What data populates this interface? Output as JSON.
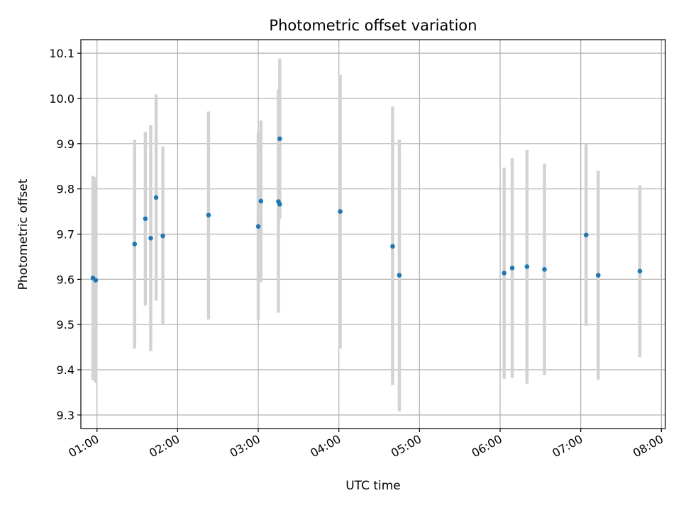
{
  "chart_data": {
    "type": "scatter",
    "title": "Photometric offset variation",
    "xlabel": "UTC time",
    "ylabel": "Photometric offset",
    "grid": true,
    "x_unit": "UTC time (HH:MM)",
    "xlim": [
      "00:48",
      "08:03"
    ],
    "ylim": [
      9.27,
      10.13
    ],
    "xticks": [
      "01:00",
      "02:00",
      "03:00",
      "04:00",
      "05:00",
      "06:00",
      "07:00",
      "08:00"
    ],
    "yticks": [
      "9.3",
      "9.4",
      "9.5",
      "9.6",
      "9.7",
      "9.8",
      "9.9",
      "10.0",
      "10.1"
    ],
    "marker_color": "#1f77b4",
    "errorbar_color": "#d3d3d3",
    "points": [
      {
        "x": "00:57",
        "y": 9.603,
        "ylow": 9.377,
        "yhigh": 9.829
      },
      {
        "x": "00:59",
        "y": 9.598,
        "ylow": 9.371,
        "yhigh": 9.826
      },
      {
        "x": "01:28",
        "y": 9.678,
        "ylow": 9.447,
        "yhigh": 9.909
      },
      {
        "x": "01:36",
        "y": 9.734,
        "ylow": 9.542,
        "yhigh": 9.926
      },
      {
        "x": "01:40",
        "y": 9.691,
        "ylow": 9.441,
        "yhigh": 9.941
      },
      {
        "x": "01:44",
        "y": 9.781,
        "ylow": 9.553,
        "yhigh": 10.009
      },
      {
        "x": "01:49",
        "y": 9.696,
        "ylow": 9.499,
        "yhigh": 9.894
      },
      {
        "x": "02:23",
        "y": 9.742,
        "ylow": 9.511,
        "yhigh": 9.971
      },
      {
        "x": "03:00",
        "y": 9.717,
        "ylow": 9.51,
        "yhigh": 9.924
      },
      {
        "x": "03:02",
        "y": 9.773,
        "ylow": 9.594,
        "yhigh": 9.951
      },
      {
        "x": "03:15",
        "y": 9.772,
        "ylow": 9.526,
        "yhigh": 10.02
      },
      {
        "x": "03:16",
        "y": 9.766,
        "ylow": 9.733,
        "yhigh": 9.799
      },
      {
        "x": "03:16",
        "y": 9.911,
        "ylow": 9.733,
        "yhigh": 10.088
      },
      {
        "x": "04:01",
        "y": 9.75,
        "ylow": 9.447,
        "yhigh": 10.052
      },
      {
        "x": "04:40",
        "y": 9.673,
        "ylow": 9.366,
        "yhigh": 9.982
      },
      {
        "x": "04:45",
        "y": 9.609,
        "ylow": 9.308,
        "yhigh": 9.909
      },
      {
        "x": "06:03",
        "y": 9.614,
        "ylow": 9.38,
        "yhigh": 9.847
      },
      {
        "x": "06:09",
        "y": 9.625,
        "ylow": 9.382,
        "yhigh": 9.868
      },
      {
        "x": "06:20",
        "y": 9.628,
        "ylow": 9.369,
        "yhigh": 9.886
      },
      {
        "x": "06:33",
        "y": 9.622,
        "ylow": 9.388,
        "yhigh": 9.856
      },
      {
        "x": "07:04",
        "y": 9.698,
        "ylow": 9.497,
        "yhigh": 9.9
      },
      {
        "x": "07:13",
        "y": 9.609,
        "ylow": 9.378,
        "yhigh": 9.84
      },
      {
        "x": "07:44",
        "y": 9.618,
        "ylow": 9.428,
        "yhigh": 9.808
      }
    ]
  }
}
